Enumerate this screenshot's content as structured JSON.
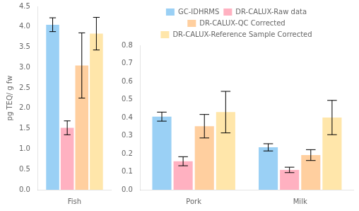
{
  "chart_data": [
    {
      "type": "bar",
      "categories": [
        "Fish"
      ],
      "ylabel": "pg TEQ/ g fw",
      "ylim": [
        0,
        4.5
      ],
      "yticks": [
        {
          "value": 0,
          "label": "0.0"
        },
        0.5,
        {
          "value": 1,
          "label": "1.0"
        },
        1.5,
        {
          "value": 2,
          "label": "2.0"
        },
        2.5,
        {
          "value": 3,
          "label": "3.0"
        },
        3.5,
        {
          "value": 4,
          "label": "4.0"
        },
        4.5
      ],
      "grid": false,
      "series": [
        {
          "name": "GC-IDHRMS",
          "values": [
            4.05
          ],
          "errors": [
            0.17
          ]
        },
        {
          "name": "DR-CALUX-Raw data",
          "values": [
            1.52
          ],
          "errors": [
            0.17
          ]
        },
        {
          "name": "DR-CALUX-QC Corrected",
          "values": [
            3.05
          ],
          "errors": [
            0.8
          ]
        },
        {
          "name": "DR-CALUX-Reference Sample Corrected",
          "values": [
            3.83
          ],
          "errors": [
            0.4
          ]
        }
      ]
    },
    {
      "type": "bar",
      "categories": [
        "Pork",
        "Milk"
      ],
      "ylim": [
        0,
        0.8
      ],
      "yticks": [
        {
          "value": 0,
          "label": "0.0"
        },
        0.1,
        0.2,
        0.3,
        0.4,
        0.5,
        0.6,
        0.7,
        0.8
      ],
      "grid": false,
      "legend": "top",
      "series": [
        {
          "name": "GC-IDHRMS",
          "values": [
            0.405,
            0.235
          ],
          "errors": [
            0.025,
            0.02
          ]
        },
        {
          "name": "DR-CALUX-Raw data",
          "values": [
            0.158,
            0.11
          ],
          "errors": [
            0.025,
            0.015
          ]
        },
        {
          "name": "DR-CALUX-QC Corrected",
          "values": [
            0.352,
            0.192
          ],
          "errors": [
            0.065,
            0.03
          ]
        },
        {
          "name": "DR-CALUX-Reference Sample Corrected",
          "values": [
            0.43,
            0.4
          ],
          "errors": [
            0.115,
            0.095
          ]
        }
      ]
    }
  ]
}
